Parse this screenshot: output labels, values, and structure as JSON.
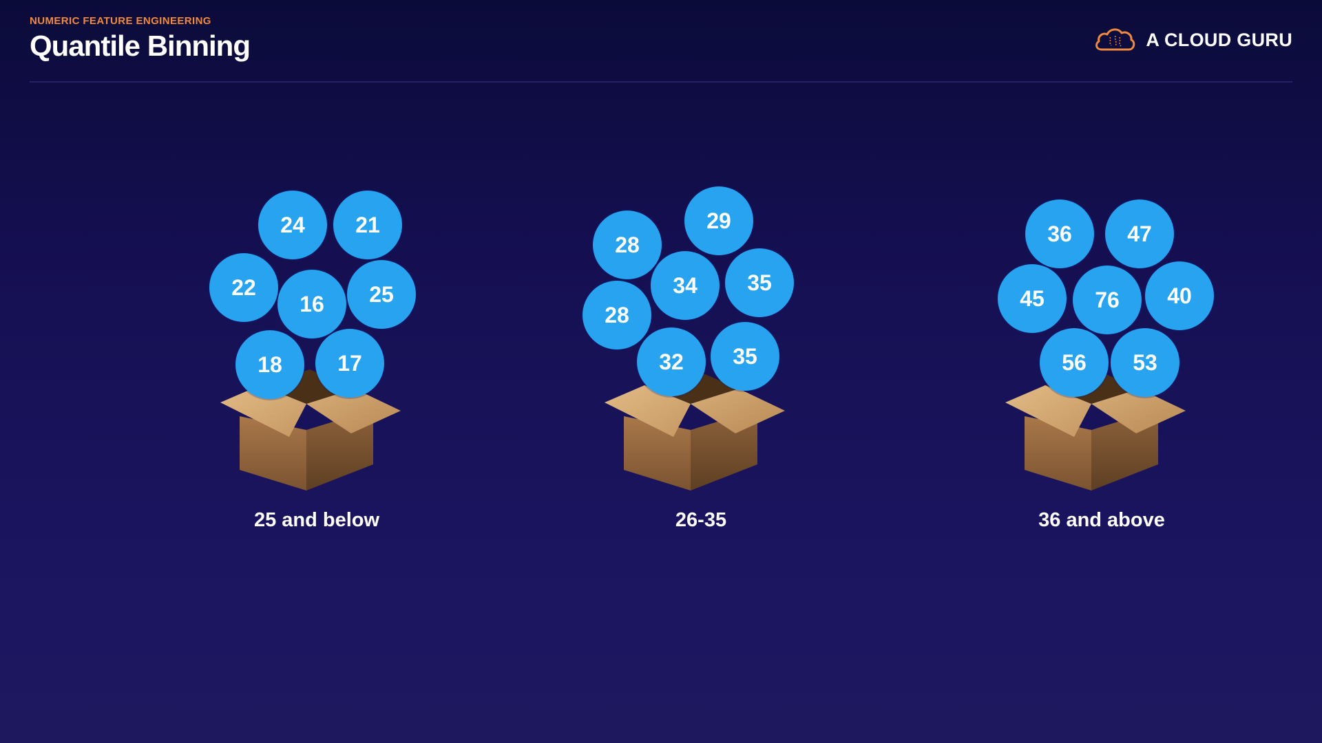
{
  "header": {
    "eyebrow": "NUMERIC FEATURE ENGINEERING",
    "title": "Quantile Binning"
  },
  "logo": {
    "text": "A CLOUD GURU",
    "icon": "cloud-icon",
    "color": "#f08a3c"
  },
  "colors": {
    "ball": "#27a3f0",
    "eyebrow": "#f08a3c"
  },
  "bins": [
    {
      "label": "25 and below",
      "values": [
        "24",
        "21",
        "22",
        "16",
        "25",
        "18",
        "17"
      ]
    },
    {
      "label": "26-35",
      "values": [
        "29",
        "28",
        "34",
        "35",
        "28",
        "32",
        "35"
      ]
    },
    {
      "label": "36 and above",
      "values": [
        "36",
        "47",
        "45",
        "76",
        "40",
        "56",
        "53"
      ]
    }
  ]
}
